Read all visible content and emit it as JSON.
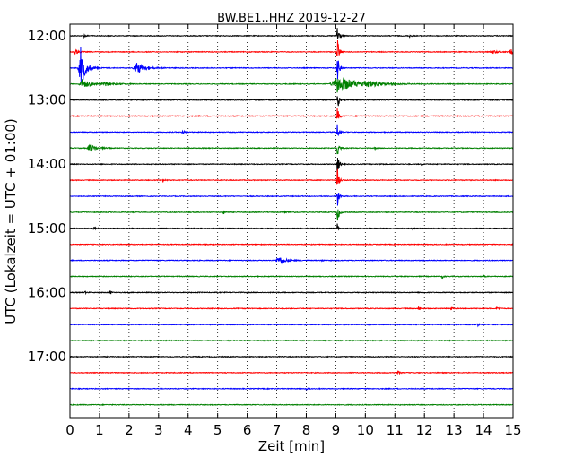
{
  "chart_data": {
    "type": "line",
    "title": "BW.BE1..HHZ 2019-12-27",
    "xlabel": "Zeit  [min]",
    "ylabel": "UTC (Lokalzeit = UTC + 01:00)",
    "xlim": [
      0,
      15
    ],
    "x_ticks": [
      "0",
      "1",
      "2",
      "3",
      "4",
      "5",
      "6",
      "7",
      "8",
      "9",
      "10",
      "11",
      "12",
      "13",
      "14",
      "15"
    ],
    "y_ticks": [
      "12:00",
      "13:00",
      "14:00",
      "15:00",
      "16:00",
      "17:00"
    ],
    "grid": "vertical dotted lines at each minute",
    "trace_colors": [
      "#000000",
      "#ff0000",
      "#0000ff",
      "#008000"
    ],
    "traces": [
      {
        "start": "12:00",
        "color": "#000000",
        "events": [
          {
            "t": 0.45,
            "amp": 0.5,
            "w": 0.05
          },
          {
            "t": 11.5,
            "amp": 0.2,
            "w": 0.05
          },
          {
            "t": 9.05,
            "amp": 2.5,
            "w": 0.05
          }
        ]
      },
      {
        "start": "12:15",
        "color": "#ff0000",
        "events": [
          {
            "t": 0.15,
            "amp": 0.6,
            "w": 0.1
          },
          {
            "t": 9.05,
            "amp": 2.5,
            "w": 0.05
          },
          {
            "t": 14.3,
            "amp": 0.3,
            "w": 0.15
          },
          {
            "t": 14.9,
            "amp": 0.6,
            "w": 0.1
          }
        ]
      },
      {
        "start": "12:30",
        "color": "#0000ff",
        "events": [
          {
            "t": 0.35,
            "amp": 3.5,
            "w": 0.15
          },
          {
            "t": 2.25,
            "amp": 1.0,
            "w": 0.25
          },
          {
            "t": 9.05,
            "amp": 2.5,
            "w": 0.05
          }
        ]
      },
      {
        "start": "12:45",
        "color": "#008000",
        "events": [
          {
            "t": 0.4,
            "amp": 0.8,
            "w": 0.25
          },
          {
            "t": 1.2,
            "amp": 0.3,
            "w": 0.3
          },
          {
            "t": 9.05,
            "amp": 1.5,
            "w": 0.5
          },
          {
            "t": 10.0,
            "amp": 0.4,
            "w": 0.5
          }
        ]
      },
      {
        "start": "13:00",
        "color": "#000000",
        "events": [
          {
            "t": 9.05,
            "amp": 2.0,
            "w": 0.05
          }
        ]
      },
      {
        "start": "13:15",
        "color": "#ff0000",
        "events": [
          {
            "t": 9.05,
            "amp": 1.5,
            "w": 0.05
          }
        ]
      },
      {
        "start": "13:30",
        "color": "#0000ff",
        "events": [
          {
            "t": 3.8,
            "amp": 0.5,
            "w": 0.05
          },
          {
            "t": 9.05,
            "amp": 1.5,
            "w": 0.05
          }
        ]
      },
      {
        "start": "13:45",
        "color": "#008000",
        "events": [
          {
            "t": 0.65,
            "amp": 0.6,
            "w": 0.2
          },
          {
            "t": 9.05,
            "amp": 2.0,
            "w": 0.05
          },
          {
            "t": 10.3,
            "amp": 0.2,
            "w": 0.05
          }
        ]
      },
      {
        "start": "14:00",
        "color": "#000000",
        "events": [
          {
            "t": 9.05,
            "amp": 2.0,
            "w": 0.05
          },
          {
            "t": 10.5,
            "amp": 0.15,
            "w": 0.05
          },
          {
            "t": 11.9,
            "amp": 0.15,
            "w": 0.05
          }
        ]
      },
      {
        "start": "14:15",
        "color": "#ff0000",
        "events": [
          {
            "t": 3.15,
            "amp": 0.3,
            "w": 0.05
          },
          {
            "t": 9.05,
            "amp": 2.0,
            "w": 0.05
          }
        ]
      },
      {
        "start": "14:30",
        "color": "#0000ff",
        "events": [
          {
            "t": 9.05,
            "amp": 2.0,
            "w": 0.05
          }
        ]
      },
      {
        "start": "14:45",
        "color": "#008000",
        "events": [
          {
            "t": 5.2,
            "amp": 0.3,
            "w": 0.05
          },
          {
            "t": 7.3,
            "amp": 0.1,
            "w": 0.2
          },
          {
            "t": 9.05,
            "amp": 2.0,
            "w": 0.05
          }
        ]
      },
      {
        "start": "15:00",
        "color": "#000000",
        "events": [
          {
            "t": 0.8,
            "amp": 0.3,
            "w": 0.05
          },
          {
            "t": 9.05,
            "amp": 1.0,
            "w": 0.03
          },
          {
            "t": 11.6,
            "amp": 0.15,
            "w": 0.05
          }
        ]
      },
      {
        "start": "15:15",
        "color": "#ff0000",
        "events": []
      },
      {
        "start": "15:30",
        "color": "#0000ff",
        "events": [
          {
            "t": 7.05,
            "amp": 0.7,
            "w": 0.2
          },
          {
            "t": 8.5,
            "amp": 0.2,
            "w": 0.05
          }
        ]
      },
      {
        "start": "15:45",
        "color": "#008000",
        "events": [
          {
            "t": 12.6,
            "amp": 0.3,
            "w": 0.05
          },
          {
            "t": 14.0,
            "amp": 0.2,
            "w": 0.05
          }
        ]
      },
      {
        "start": "16:00",
        "color": "#000000",
        "events": [
          {
            "t": 0.5,
            "amp": 0.2,
            "w": 0.05
          },
          {
            "t": 1.35,
            "amp": 0.3,
            "w": 0.05
          }
        ]
      },
      {
        "start": "16:15",
        "color": "#ff0000",
        "events": [
          {
            "t": 11.8,
            "amp": 0.4,
            "w": 0.05
          },
          {
            "t": 12.9,
            "amp": 0.3,
            "w": 0.05
          },
          {
            "t": 14.45,
            "amp": 0.4,
            "w": 0.05
          }
        ]
      },
      {
        "start": "16:30",
        "color": "#0000ff",
        "events": [
          {
            "t": 13.8,
            "amp": 0.3,
            "w": 0.05
          }
        ]
      },
      {
        "start": "16:45",
        "color": "#008000",
        "events": []
      },
      {
        "start": "17:00",
        "color": "#000000",
        "events": []
      },
      {
        "start": "17:15",
        "color": "#ff0000",
        "events": [
          {
            "t": 11.1,
            "amp": 0.3,
            "w": 0.05
          }
        ]
      },
      {
        "start": "17:30",
        "color": "#0000ff",
        "events": [
          {
            "t": 8.0,
            "amp": 0.15,
            "w": 0.05
          }
        ]
      },
      {
        "start": "17:45",
        "color": "#008000",
        "events": []
      }
    ]
  }
}
